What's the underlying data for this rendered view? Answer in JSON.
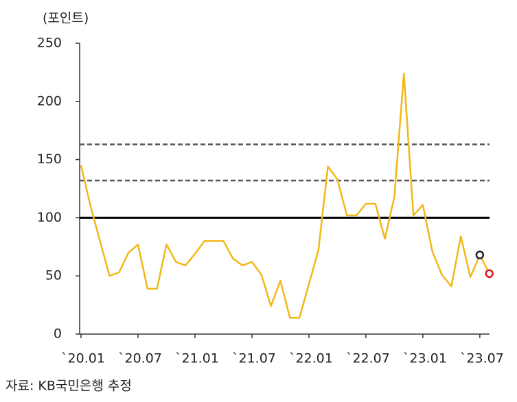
{
  "chart_data": {
    "type": "line",
    "y_label": "(포인트)",
    "source": "자료: KB국민은행 추정",
    "categories": [
      "`20.01",
      null,
      null,
      null,
      null,
      null,
      "`20.07",
      null,
      null,
      null,
      null,
      null,
      "`21.01",
      null,
      null,
      null,
      null,
      null,
      "`21.07",
      null,
      null,
      null,
      null,
      null,
      "`22.01",
      null,
      null,
      null,
      null,
      null,
      "`22.07",
      null,
      null,
      null,
      null,
      null,
      "`23.01",
      null,
      null,
      null,
      null,
      null,
      "`23.07",
      null
    ],
    "series": [
      {
        "color": "#f2b817",
        "values": [
          145,
          110,
          80,
          50,
          53,
          70,
          77,
          39,
          39,
          77,
          62,
          59,
          69,
          80,
          80,
          80,
          65,
          59,
          62,
          51,
          24,
          46,
          14,
          14,
          43,
          72,
          144,
          133,
          102,
          102,
          112,
          112,
          82,
          118,
          224,
          102,
          111,
          71,
          51,
          41,
          84,
          49,
          68,
          52
        ]
      }
    ],
    "highlight_points": [
      {
        "index": 42,
        "color": "#222222"
      },
      {
        "index": 43,
        "color": "#e0141e"
      }
    ],
    "hlines": [
      {
        "value": 100,
        "style": "solid",
        "color": "#000000"
      },
      {
        "value": 132,
        "style": "dashed",
        "color": "#555555"
      },
      {
        "value": 163,
        "style": "dashed",
        "color": "#555555"
      }
    ],
    "ylim": [
      0,
      250
    ],
    "yticks": [
      0,
      50,
      100,
      150,
      200,
      250
    ]
  }
}
